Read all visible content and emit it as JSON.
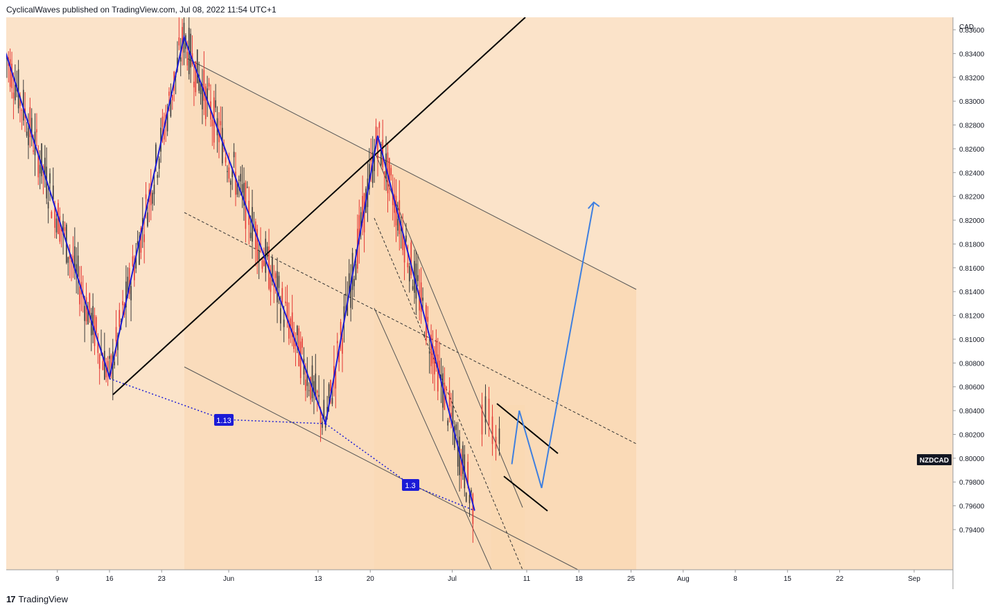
{
  "header": {
    "text": "CyclicalWaves published on TradingView.com, Jul 08, 2022 11:54 UTC+1"
  },
  "footer": {
    "logo_glyph": "17",
    "brand": "TradingView"
  },
  "colors": {
    "background": "#fbe3c9",
    "channel_fill": "#f9d7b0",
    "bull": "#3a3a3a",
    "bear": "#e53935",
    "wave": "#1b1bd6",
    "projection": "#3e7fe0",
    "badge": "#1b1bd6"
  },
  "chart_data": {
    "type": "candlestick",
    "symbol": "NZDCAD",
    "currency_label": "CAD",
    "ylim": [
      0.793,
      0.838
    ],
    "price_ticks": [
      "0.83600",
      "0.83400",
      "0.83200",
      "0.83000",
      "0.82800",
      "0.82600",
      "0.82400",
      "0.82200",
      "0.82000",
      "0.81800",
      "0.81600",
      "0.81400",
      "0.81200",
      "0.81000",
      "0.80800",
      "0.80600",
      "0.80400",
      "0.80200",
      "0.80000",
      "0.79800",
      "0.79600",
      "0.79400"
    ],
    "time_ticks": [
      "9",
      "16",
      "23",
      "Jun",
      "13",
      "20",
      "Jul",
      "11",
      "18",
      "25",
      "Aug",
      "8",
      "15",
      "22",
      "Sep"
    ],
    "current_price": 0.8013,
    "wave_path": [
      {
        "label": "",
        "date": "May 02",
        "price": 0.8342
      },
      {
        "label": "",
        "date": "May 16",
        "price": 0.8068
      },
      {
        "label": "",
        "date": "May 26",
        "price": 0.8354
      },
      {
        "label": "",
        "date": "Jun 14",
        "price": 0.8029
      },
      {
        "label": "",
        "date": "Jun 21",
        "price": 0.8271
      },
      {
        "label": "",
        "date": "Jul 04",
        "price": 0.7956
      }
    ],
    "fib_ratios": [
      "1.13",
      "1.3"
    ],
    "projection_path": [
      {
        "date": "Jul 09",
        "price": 0.7995
      },
      {
        "date": "Jul 10",
        "price": 0.804
      },
      {
        "date": "Jul 13",
        "price": 0.7975
      },
      {
        "date": "Jul 20",
        "price": 0.8215
      }
    ]
  }
}
